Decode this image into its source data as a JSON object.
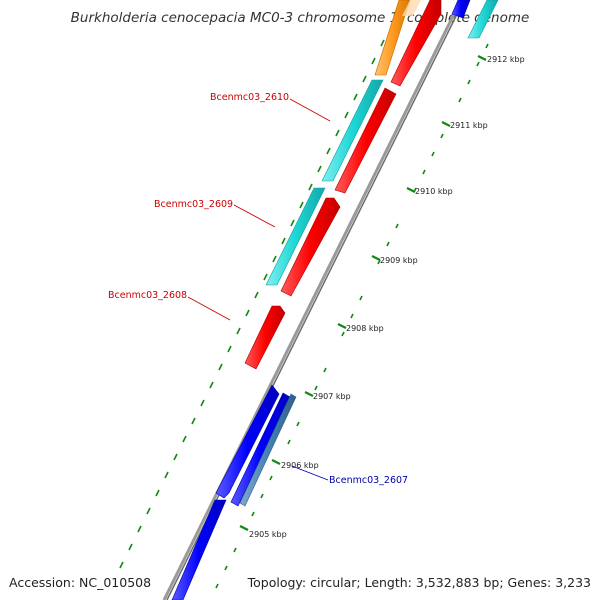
{
  "title": "Burkholderia cenocepacia MC0-3 chromosome 1, complete genome",
  "accession": "Accession: NC_010508",
  "summary": "Topology: circular; Length: 3,532,883 bp; Genes: 3,233",
  "ticks": [
    "2912 kbp",
    "2911 kbp",
    "2910 kbp",
    "2909 kbp",
    "2908 kbp",
    "2907 kbp",
    "2906 kbp",
    "2905 kbp"
  ],
  "gene_labels": [
    {
      "name": "Bcenmc03_2610",
      "strand": "reverse",
      "color": "#cc0000"
    },
    {
      "name": "Bcenmc03_2609",
      "strand": "reverse",
      "color": "#cc0000"
    },
    {
      "name": "Bcenmc03_2608",
      "strand": "reverse",
      "color": "#cc0000"
    },
    {
      "name": "Bcenmc03_2607",
      "strand": "forward",
      "color": "#0000aa"
    }
  ],
  "colors": {
    "backbone": "#8c8c8c",
    "reverse_cds": "#ff0000",
    "forward_cds": "#0000ff",
    "cyan_feature": "#1ed6d6",
    "orange_feature": "#ff9a20",
    "steel_feature": "#4682b4",
    "tick": "#118811"
  }
}
